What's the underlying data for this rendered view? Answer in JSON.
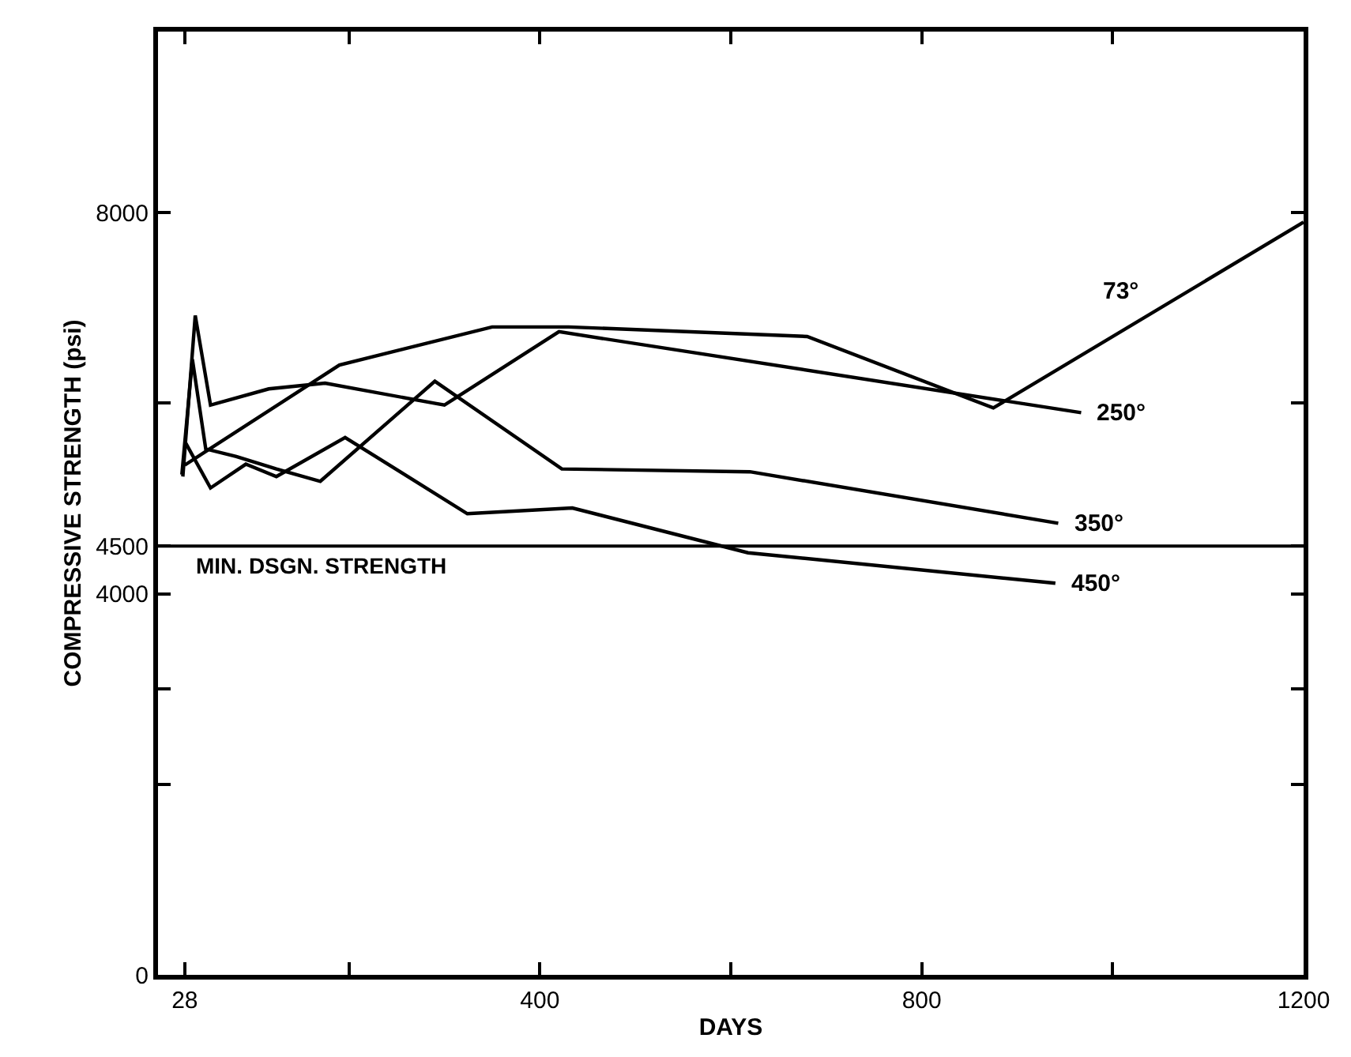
{
  "chart_data": {
    "type": "line",
    "xlabel": "DAYS",
    "ylabel": "COMPRESSIVE STRENGTH (psi)",
    "xlim": [
      0,
      1200
    ],
    "ylim": [
      0,
      9900
    ],
    "xticks": [
      28,
      {
        "value": 200,
        "label": null
      },
      400,
      {
        "value": 600,
        "label": null
      },
      800,
      {
        "value": 1000,
        "label": null
      },
      1200
    ],
    "yticks": [
      0,
      {
        "value": 2000,
        "label": null
      },
      {
        "value": 3000,
        "label": null
      },
      4000,
      4500,
      {
        "value": 6000,
        "label": null
      },
      8000
    ],
    "grid": false,
    "legend": false,
    "marker": "none",
    "line_style": "solid",
    "ref_lines": [
      {
        "axis": "y",
        "value": 4500,
        "label": "MIN. DSGN. STRENGTH",
        "color": "#000000"
      }
    ],
    "series": [
      {
        "name": "73°",
        "color": "#000000",
        "x": [
          28,
          190,
          350,
          430,
          680,
          875,
          1200
        ],
        "values": [
          5350,
          6400,
          6800,
          6800,
          6700,
          5950,
          7900
        ]
      },
      {
        "name": "250°",
        "color": "#000000",
        "x": [
          26,
          39,
          55,
          116,
          175,
          300,
          420,
          967
        ],
        "values": [
          5230,
          6920,
          5980,
          6150,
          6210,
          5980,
          6750,
          5900
        ]
      },
      {
        "name": "350°",
        "color": "#000000",
        "x": [
          25,
          36,
          50,
          82,
          124,
          170,
          290,
          423,
          620,
          943
        ],
        "values": [
          5250,
          6460,
          5520,
          5440,
          5310,
          5180,
          6230,
          5310,
          5280,
          4740
        ]
      },
      {
        "name": "450°",
        "color": "#000000",
        "x": [
          28,
          55,
          92,
          124,
          196,
          324,
          434,
          618,
          940
        ],
        "values": [
          5600,
          5110,
          5360,
          5230,
          5640,
          4840,
          4900,
          4430,
          4110
        ]
      }
    ]
  }
}
